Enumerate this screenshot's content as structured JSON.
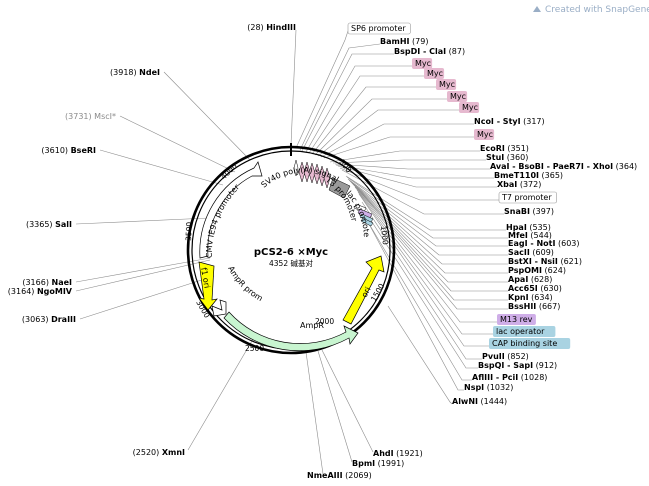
{
  "watermark": "Created with SnapGene®",
  "plasmid": {
    "name": "pCS2-6 ×Myc",
    "size_text": "4352 碱基对"
  },
  "colors": {
    "promoter_box": "#ffffff",
    "myc_fill": "#e6b9cf",
    "m13_fill": "#cfaee8",
    "lac_fill": "#a9d3e2",
    "cap_fill": "#a9d3e2",
    "ori_fill": "#ffff00",
    "ampr_fill": "#c8f5d0",
    "sv40_fill": "#9a9a9a",
    "cmv_fill": "#ffffff"
  },
  "tick_marks": [
    "500",
    "1000",
    "1500",
    "2000",
    "2500",
    "3000",
    "3500",
    "4000"
  ],
  "right_sites": [
    {
      "name": "SP6 promoter",
      "pos": "",
      "kind": "feature-white"
    },
    {
      "name": "BamHI",
      "pos": "(79)"
    },
    {
      "name": "BspDI - ClaI",
      "pos": "(87)"
    },
    {
      "name": "Myc",
      "pos": "",
      "kind": "feature-myc"
    },
    {
      "name": "Myc",
      "pos": "",
      "kind": "feature-myc"
    },
    {
      "name": "Myc",
      "pos": "",
      "kind": "feature-myc"
    },
    {
      "name": "Myc",
      "pos": "",
      "kind": "feature-myc"
    },
    {
      "name": "Myc",
      "pos": "",
      "kind": "feature-myc"
    },
    {
      "name": "NcoI - StyI",
      "pos": "(317)"
    },
    {
      "name": "Myc",
      "pos": "",
      "kind": "feature-myc"
    },
    {
      "name": "EcoRI",
      "pos": "(351)"
    },
    {
      "name": "StuI",
      "pos": "(360)"
    },
    {
      "name": "AvaI - BsoBI - PaeR7I - XhoI",
      "pos": "(364)"
    },
    {
      "name": "BmeT110I",
      "pos": "(365)"
    },
    {
      "name": "XbaI",
      "pos": "(372)"
    },
    {
      "name": "T7 promoter",
      "pos": "",
      "kind": "feature-white"
    },
    {
      "name": "SnaBI",
      "pos": "(397)"
    },
    {
      "name": "HpaI",
      "pos": "(535)"
    },
    {
      "name": "MfeI",
      "pos": "(544)"
    },
    {
      "name": "EagI - NotI",
      "pos": "(603)"
    },
    {
      "name": "SacII",
      "pos": "(609)"
    },
    {
      "name": "BstXI - NsiI",
      "pos": "(621)"
    },
    {
      "name": "PspOMI",
      "pos": "(624)"
    },
    {
      "name": "ApaI",
      "pos": "(628)"
    },
    {
      "name": "Acc65I",
      "pos": "(630)"
    },
    {
      "name": "KpnI",
      "pos": "(634)"
    },
    {
      "name": "BssHII",
      "pos": "(667)"
    },
    {
      "name": "M13 rev",
      "pos": "",
      "kind": "feature-m13"
    },
    {
      "name": "lac operator",
      "pos": "",
      "kind": "feature-lac"
    },
    {
      "name": "CAP binding site",
      "pos": "",
      "kind": "feature-cap"
    },
    {
      "name": "PvuII",
      "pos": "(852)"
    },
    {
      "name": "BspQI - SapI",
      "pos": "(912)"
    },
    {
      "name": "AflIII - PciI",
      "pos": "(1028)"
    },
    {
      "name": "NspI",
      "pos": "(1032)"
    },
    {
      "name": "AlwNI",
      "pos": "(1444)"
    }
  ],
  "left_sites": [
    {
      "name": "HindIII",
      "pos": "(28)"
    },
    {
      "name": "NdeI",
      "pos": "(3918)"
    },
    {
      "name": "MscI*",
      "pos": "(3731)",
      "kind": "gray"
    },
    {
      "name": "BseRI",
      "pos": "(3610)"
    },
    {
      "name": "SalI",
      "pos": "(3365)"
    },
    {
      "name": "NaeI",
      "pos": "(3166)"
    },
    {
      "name": "NgoMIV",
      "pos": "(3164)"
    },
    {
      "name": "DraIII",
      "pos": "(3063)"
    },
    {
      "name": "XmnI",
      "pos": "(2520)"
    }
  ],
  "bottom_sites": [
    {
      "name": "AhdI",
      "pos": "(1921)"
    },
    {
      "name": "BpmI",
      "pos": "(1991)"
    },
    {
      "name": "NmeAIII",
      "pos": "(2069)"
    }
  ],
  "map_features": [
    {
      "name": "SV40 poly(A) signal"
    },
    {
      "name": "T3 promoter"
    },
    {
      "name": "lac promoter"
    },
    {
      "name": "ori"
    },
    {
      "name": "AmpR"
    },
    {
      "name": "AmpR promoter"
    },
    {
      "name": "f1 ori"
    },
    {
      "name": "CMV IE94 promoter"
    }
  ]
}
